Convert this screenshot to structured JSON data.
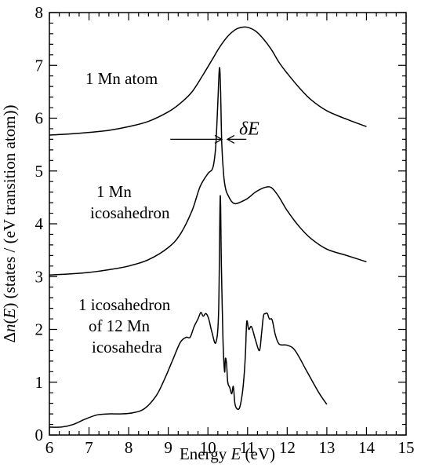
{
  "chart_data": {
    "type": "line",
    "xlabel_parts": [
      "Energy ",
      "E",
      " (eV)"
    ],
    "ylabel_parts": [
      "Δ",
      "n",
      "(",
      "E",
      ") (states / (eV transition atom))"
    ],
    "xlim": [
      6,
      15
    ],
    "ylim": [
      0,
      8
    ],
    "xticks": [
      "6",
      "7",
      "8",
      "9",
      "10",
      "11",
      "12",
      "13",
      "14",
      "15"
    ],
    "yticks": [
      "0",
      "1",
      "2",
      "3",
      "4",
      "5",
      "6",
      "7",
      "8"
    ],
    "grid": false,
    "series": [
      {
        "labels": [
          "1 Mn atom"
        ],
        "x": [
          6.0,
          6.5,
          7.0,
          7.5,
          8.0,
          8.5,
          9.0,
          9.3,
          9.6,
          9.9,
          10.1,
          10.3,
          10.5,
          10.7,
          10.85,
          11.0,
          11.2,
          11.4,
          11.6,
          11.8,
          12.0,
          12.3,
          12.6,
          13.0,
          13.5,
          14.0
        ],
        "y": [
          5.68,
          5.7,
          5.73,
          5.77,
          5.84,
          5.94,
          6.12,
          6.28,
          6.5,
          6.85,
          7.1,
          7.35,
          7.55,
          7.68,
          7.72,
          7.72,
          7.65,
          7.5,
          7.3,
          7.05,
          6.85,
          6.58,
          6.35,
          6.14,
          5.98,
          5.84
        ]
      },
      {
        "labels": [
          "1 Mn",
          "icosahedron"
        ],
        "x": [
          6.0,
          6.5,
          7.0,
          7.5,
          8.0,
          8.5,
          9.0,
          9.3,
          9.6,
          9.8,
          10.0,
          10.1,
          10.15,
          10.2,
          10.25,
          10.28,
          10.3,
          10.32,
          10.35,
          10.4,
          10.45,
          10.5,
          10.6,
          10.7,
          10.85,
          11.0,
          11.2,
          11.4,
          11.55,
          11.65,
          11.8,
          12.0,
          12.3,
          12.6,
          13.0,
          13.5,
          14.0
        ],
        "y": [
          3.03,
          3.05,
          3.08,
          3.13,
          3.2,
          3.32,
          3.55,
          3.8,
          4.25,
          4.7,
          4.95,
          5.02,
          5.15,
          5.5,
          6.3,
          6.85,
          6.93,
          6.5,
          5.5,
          4.9,
          4.65,
          4.55,
          4.42,
          4.38,
          4.42,
          4.48,
          4.6,
          4.68,
          4.7,
          4.65,
          4.5,
          4.25,
          3.95,
          3.72,
          3.52,
          3.4,
          3.28
        ]
      },
      {
        "labels": [
          "1 icosahedron",
          "of 12 Mn",
          "icosahedra"
        ],
        "x": [
          6.0,
          6.3,
          6.6,
          6.9,
          7.2,
          7.5,
          7.8,
          8.1,
          8.4,
          8.7,
          8.9,
          9.1,
          9.3,
          9.45,
          9.55,
          9.65,
          9.75,
          9.82,
          9.88,
          9.95,
          10.02,
          10.1,
          10.2,
          10.27,
          10.31,
          10.34,
          10.38,
          10.42,
          10.44,
          10.47,
          10.5,
          10.55,
          10.6,
          10.64,
          10.68,
          10.73,
          10.8,
          10.87,
          10.92,
          10.95,
          10.98,
          11.03,
          11.1,
          11.2,
          11.3,
          11.35,
          11.4,
          11.45,
          11.5,
          11.55,
          11.62,
          11.7,
          11.8,
          12.0,
          12.2,
          12.5,
          12.8,
          13.0
        ],
        "y": [
          0.15,
          0.15,
          0.2,
          0.3,
          0.38,
          0.4,
          0.4,
          0.42,
          0.5,
          0.75,
          1.05,
          1.4,
          1.75,
          1.85,
          1.85,
          2.05,
          2.2,
          2.32,
          2.25,
          2.3,
          2.2,
          1.95,
          1.75,
          2.35,
          4.52,
          3.2,
          1.8,
          1.2,
          1.45,
          1.35,
          1.0,
          0.9,
          0.78,
          0.92,
          0.6,
          0.5,
          0.52,
          0.8,
          1.2,
          1.6,
          2.15,
          2.0,
          2.05,
          1.8,
          1.6,
          1.9,
          2.25,
          2.3,
          2.3,
          2.2,
          2.18,
          1.9,
          1.72,
          1.7,
          1.6,
          1.2,
          0.8,
          0.58
        ]
      }
    ],
    "annotation": {
      "label": "δE",
      "x_left": 9.05,
      "x_right": 10.97,
      "y": 5.6
    }
  }
}
